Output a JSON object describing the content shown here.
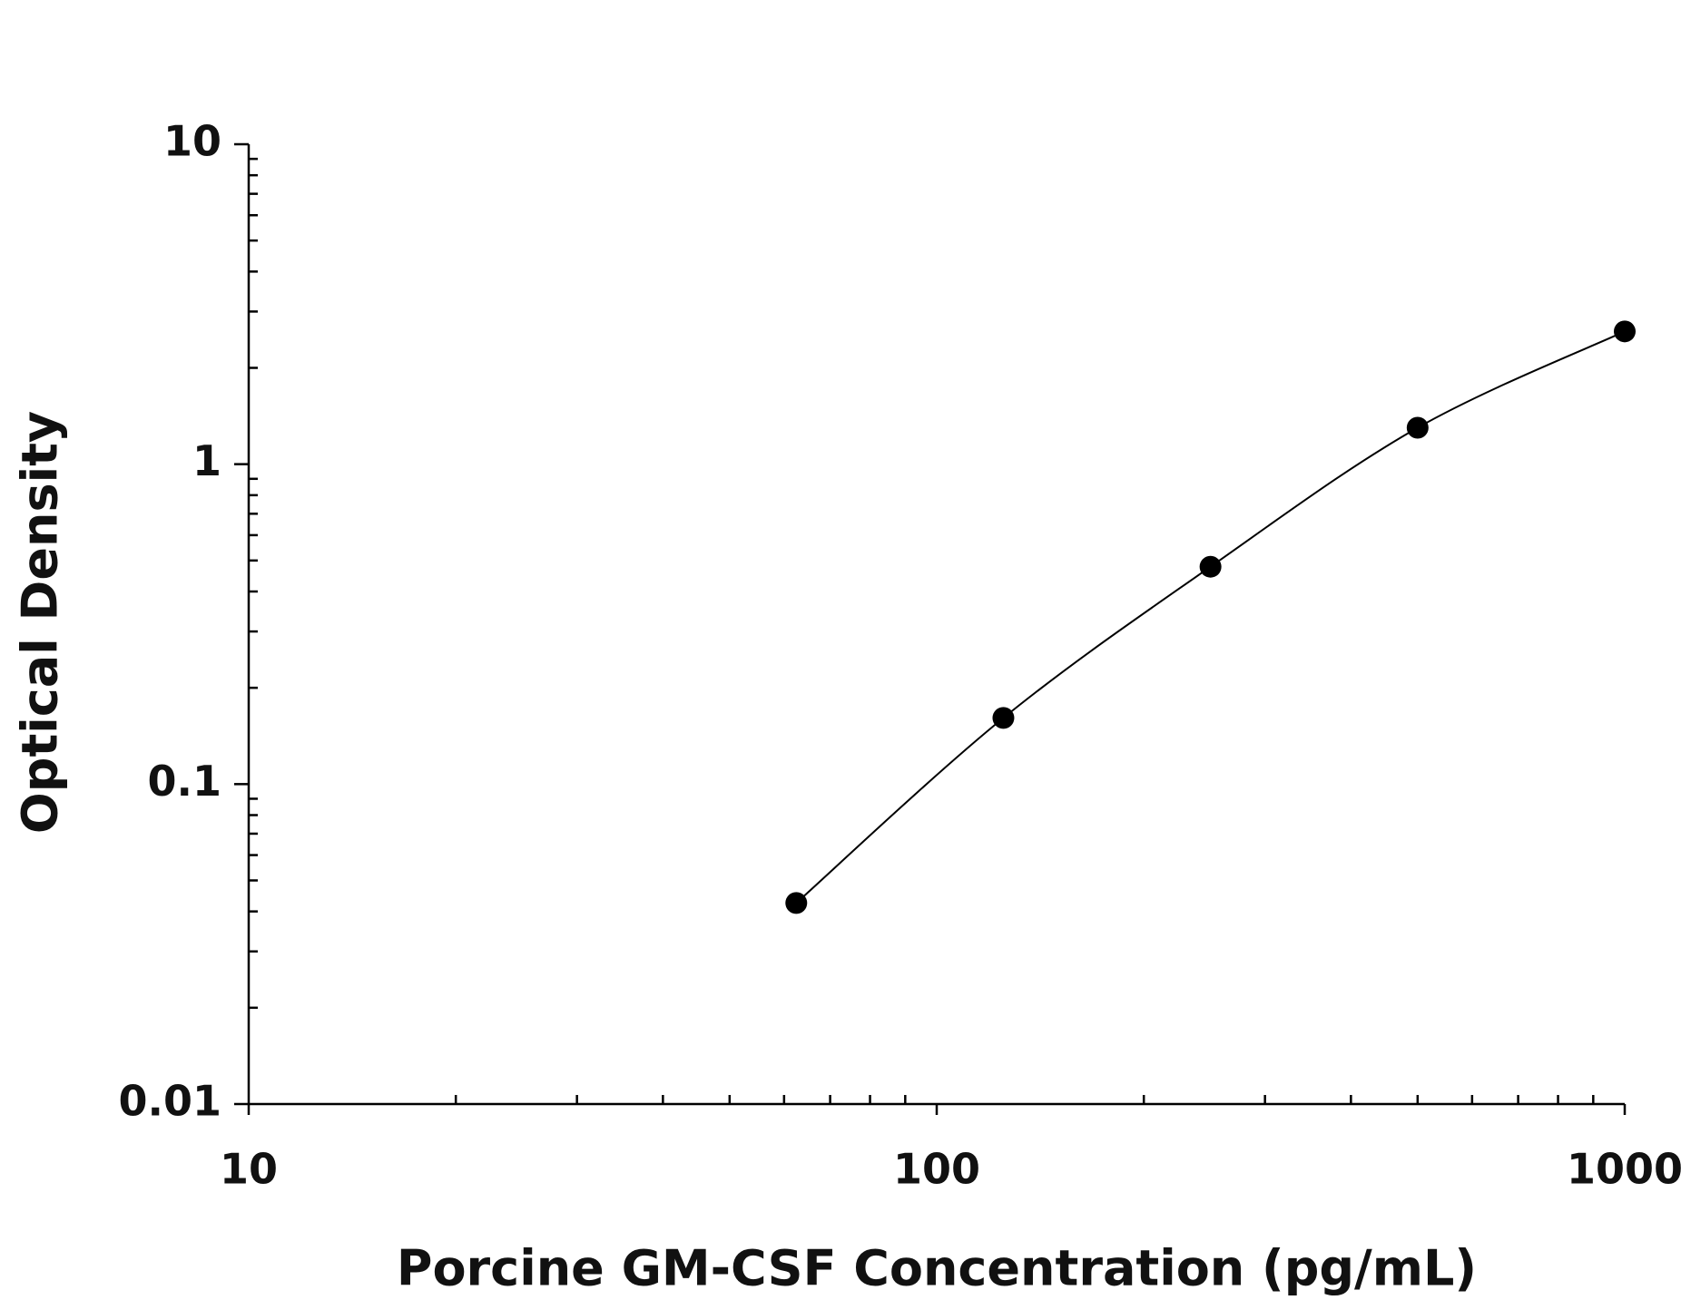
{
  "chart_data": {
    "type": "line",
    "x_label": "Porcine GM-CSF Concentration (pg/mL)",
    "y_label": "Optical Density",
    "x": [
      62.5,
      125,
      250,
      500,
      1000
    ],
    "series": [
      {
        "color": "#000000",
        "values": [
          0.0425,
          0.161,
          0.478,
          1.3,
          2.6
        ]
      }
    ],
    "xlim": [
      10,
      1000
    ],
    "xticks": [
      10,
      100,
      1000
    ],
    "ylim": [
      0.01,
      10
    ],
    "yticks": [
      0.01,
      0.1,
      1,
      10
    ],
    "xlog": true,
    "ylog": true,
    "grid": false,
    "markers": true
  }
}
